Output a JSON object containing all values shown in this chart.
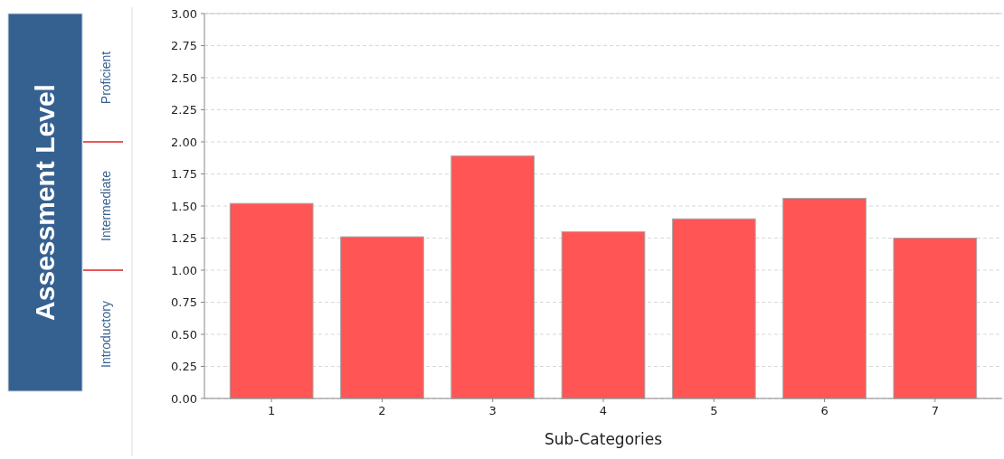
{
  "chart_data": {
    "type": "bar",
    "xlabel": "Sub-Categories",
    "ylabel": "Assessment Level",
    "categories": [
      "1",
      "2",
      "3",
      "4",
      "5",
      "6",
      "7"
    ],
    "values": [
      1.52,
      1.26,
      1.89,
      1.3,
      1.4,
      1.56,
      1.25
    ],
    "color": "#ff5555",
    "ylim": [
      0,
      3
    ],
    "yticks": [
      {
        "value": 0,
        "label": "0.00"
      },
      {
        "value": 0.25,
        "label": "0.25"
      },
      {
        "value": 0.5,
        "label": "0.50"
      },
      {
        "value": 0.75,
        "label": "0.75"
      },
      {
        "value": 1,
        "label": "1.00"
      },
      {
        "value": 1.25,
        "label": "1.25"
      },
      {
        "value": 1.5,
        "label": "1.50"
      },
      {
        "value": 1.75,
        "label": "1.75"
      },
      {
        "value": 2,
        "label": "2.00"
      },
      {
        "value": 2.25,
        "label": "2.25"
      },
      {
        "value": 2.5,
        "label": "2.50"
      },
      {
        "value": 2.75,
        "label": "2.75"
      },
      {
        "value": 3,
        "label": "3.00"
      }
    ],
    "grid": "y",
    "annotations": [
      "Introductory",
      "Intermediate",
      "Proficient"
    ]
  }
}
